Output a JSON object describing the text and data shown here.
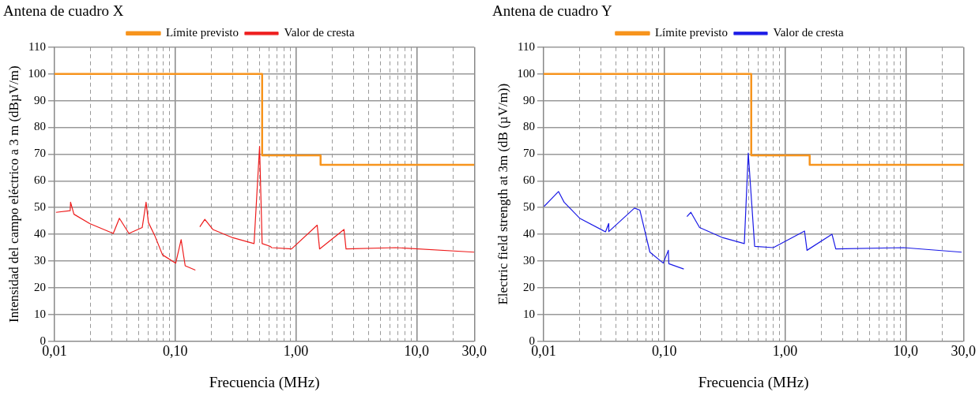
{
  "chart_data": [
    {
      "type": "line",
      "title": "Antena de cuadro X",
      "xlabel": "Frecuencia (MHz)",
      "ylabel": "Intensidad del campo eléctrico a 3 m (dBµV/m)",
      "log": "x",
      "grid": true,
      "legend": "top",
      "marker": "none",
      "line_style": "solid",
      "xlim": [
        0.01,
        30
      ],
      "xticks": [
        {
          "value": 0.01,
          "label": "0,01"
        },
        {
          "value": 0.02,
          "label": null
        },
        {
          "value": 0.03,
          "label": null
        },
        {
          "value": 0.04,
          "label": null
        },
        {
          "value": 0.05,
          "label": null
        },
        {
          "value": 0.06,
          "label": null
        },
        {
          "value": 0.07,
          "label": null
        },
        {
          "value": 0.08,
          "label": null
        },
        {
          "value": 0.09,
          "label": null
        },
        {
          "value": 0.1,
          "label": "0,10"
        },
        {
          "value": 0.2,
          "label": null
        },
        {
          "value": 0.3,
          "label": null
        },
        {
          "value": 0.4,
          "label": null
        },
        {
          "value": 0.5,
          "label": null
        },
        {
          "value": 0.6,
          "label": null
        },
        {
          "value": 0.7,
          "label": null
        },
        {
          "value": 0.8,
          "label": null
        },
        {
          "value": 0.9,
          "label": null
        },
        {
          "value": 1,
          "label": "1,00"
        },
        {
          "value": 2,
          "label": null
        },
        {
          "value": 3,
          "label": null
        },
        {
          "value": 4,
          "label": null
        },
        {
          "value": 5,
          "label": null
        },
        {
          "value": 6,
          "label": null
        },
        {
          "value": 7,
          "label": null
        },
        {
          "value": 8,
          "label": null
        },
        {
          "value": 9,
          "label": null
        },
        {
          "value": 10,
          "label": "10,0"
        },
        {
          "value": 20,
          "label": null
        },
        {
          "value": 30,
          "label": "30,0"
        }
      ],
      "ylim": [
        0,
        110
      ],
      "yticks": [
        0,
        10,
        20,
        30,
        40,
        50,
        60,
        70,
        80,
        90,
        100,
        110
      ],
      "series": [
        {
          "name": "Límite previsto",
          "type": "step",
          "color": "#f7941d",
          "x": [
            0.01,
            0.525,
            1.6,
            30
          ],
          "values": [
            100,
            69.5,
            66,
            66
          ]
        },
        {
          "name": "Valor de cresta",
          "color": "#ee1c1c",
          "x": [
            0.0103,
            0.0135,
            0.0136,
            0.0145,
            0.0196,
            0.0307,
            0.0345,
            0.0414,
            0.0533,
            0.0574,
            0.06,
            0.0676,
            0.0785,
            0.101,
            0.112,
            0.121,
            0.147,
            0.152,
            0.16,
            0.176,
            0.205,
            0.3,
            0.45,
            0.5,
            0.525,
            0.61,
            0.63,
            0.92,
            1.5,
            1.57,
            2.5,
            2.6,
            6.7,
            30
          ],
          "values": [
            48.2,
            48.8,
            52,
            47.5,
            44,
            40.3,
            46,
            40.3,
            42.5,
            52,
            44.4,
            39.6,
            32.3,
            29.2,
            38,
            28.2,
            26.6,
            null,
            42.8,
            45.6,
            41.8,
            38.7,
            36.5,
            72.9,
            36.5,
            35.5,
            35,
            34.5,
            43.4,
            34.5,
            41.8,
            34.5,
            35,
            33.3
          ]
        }
      ]
    },
    {
      "type": "line",
      "title": "Antena de cuadro Y",
      "xlabel": "Frecuencia (MHz)",
      "ylabel": "Electric field strength at 3m (dB (µV/m))",
      "log": "x",
      "grid": true,
      "legend": "top",
      "marker": "none",
      "line_style": "solid",
      "xlim": [
        0.01,
        30
      ],
      "xticks": [
        {
          "value": 0.01,
          "label": "0,01"
        },
        {
          "value": 0.02,
          "label": null
        },
        {
          "value": 0.03,
          "label": null
        },
        {
          "value": 0.04,
          "label": null
        },
        {
          "value": 0.05,
          "label": null
        },
        {
          "value": 0.06,
          "label": null
        },
        {
          "value": 0.07,
          "label": null
        },
        {
          "value": 0.08,
          "label": null
        },
        {
          "value": 0.09,
          "label": null
        },
        {
          "value": 0.1,
          "label": "0,10"
        },
        {
          "value": 0.2,
          "label": null
        },
        {
          "value": 0.3,
          "label": null
        },
        {
          "value": 0.4,
          "label": null
        },
        {
          "value": 0.5,
          "label": null
        },
        {
          "value": 0.6,
          "label": null
        },
        {
          "value": 0.7,
          "label": null
        },
        {
          "value": 0.8,
          "label": null
        },
        {
          "value": 0.9,
          "label": null
        },
        {
          "value": 1,
          "label": "1,00"
        },
        {
          "value": 2,
          "label": null
        },
        {
          "value": 3,
          "label": null
        },
        {
          "value": 4,
          "label": null
        },
        {
          "value": 5,
          "label": null
        },
        {
          "value": 6,
          "label": null
        },
        {
          "value": 7,
          "label": null
        },
        {
          "value": 8,
          "label": null
        },
        {
          "value": 9,
          "label": null
        },
        {
          "value": 10,
          "label": "10,0"
        },
        {
          "value": 20,
          "label": null
        },
        {
          "value": 30,
          "label": "30,0"
        }
      ],
      "ylim": [
        0,
        110
      ],
      "yticks": [
        0,
        10,
        20,
        30,
        40,
        50,
        60,
        70,
        80,
        90,
        100,
        110
      ],
      "series": [
        {
          "name": "Límite previsto",
          "type": "step",
          "color": "#f7941d",
          "x": [
            0.01,
            0.525,
            1.6,
            30
          ],
          "values": [
            100,
            69.5,
            66,
            66
          ]
        },
        {
          "name": "Valor de cresta",
          "color": "#1a1ae6",
          "x": [
            0.0101,
            0.0133,
            0.0148,
            0.0199,
            0.0326,
            0.0346,
            0.0347,
            0.0566,
            0.0628,
            0.076,
            0.098,
            0.108,
            0.109,
            0.145,
            0.15,
            0.154,
            0.166,
            0.196,
            0.306,
            0.46,
            0.496,
            0.56,
            0.8,
            1.45,
            1.52,
            2.45,
            2.63,
            9.6,
            29
          ],
          "values": [
            50.4,
            56,
            52,
            46,
            40.9,
            44,
            41,
            49.8,
            49,
            33.3,
            29.2,
            34,
            29,
            27,
            null,
            46.6,
            48.2,
            42.5,
            38.7,
            36.5,
            70.4,
            35.5,
            35,
            41.2,
            34,
            40,
            34.5,
            35,
            33.3
          ]
        }
      ]
    }
  ]
}
